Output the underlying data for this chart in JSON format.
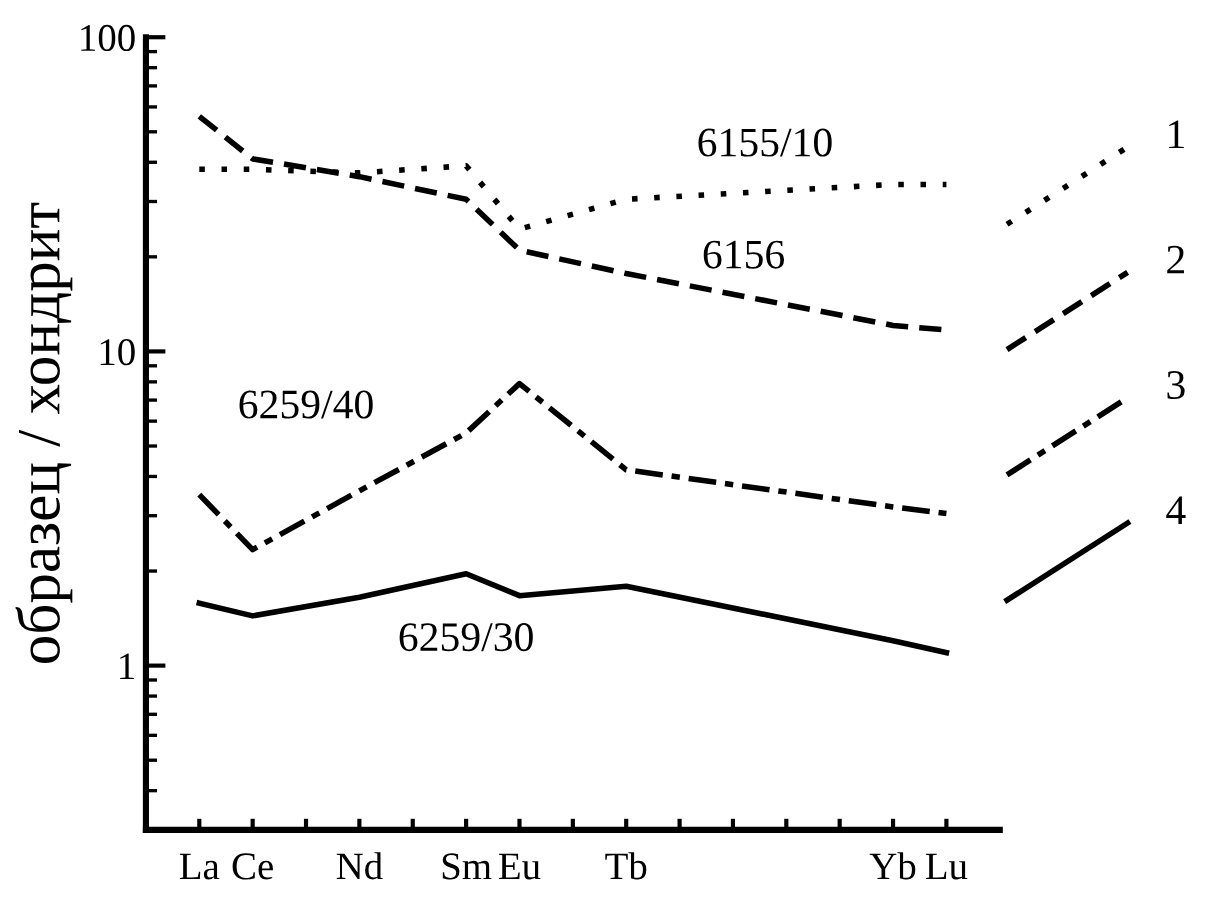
{
  "chart_data": {
    "type": "line",
    "ylabel": "образец / хондрит",
    "log": "y",
    "grid": false,
    "marker": "none",
    "legend": "right",
    "categories": [
      "La",
      "Ce",
      null,
      "Nd",
      null,
      "Sm",
      "Eu",
      null,
      "Tb",
      null,
      null,
      null,
      null,
      "Yb",
      "Lu"
    ],
    "ylim": [
      0.3,
      100
    ],
    "yticks": [
      1,
      10,
      100
    ],
    "series": [
      {
        "name": "6155/10",
        "color": "#000000",
        "line_style": "dotted",
        "values": [
          38,
          38,
          null,
          37,
          null,
          39,
          24.5,
          null,
          30.5,
          null,
          null,
          null,
          null,
          34,
          34
        ]
      },
      {
        "name": "6156",
        "color": "#000000",
        "line_style": "dashed",
        "values": [
          56,
          41,
          null,
          36,
          null,
          30.5,
          21,
          null,
          17.7,
          null,
          null,
          null,
          null,
          12.1,
          11.7
        ]
      },
      {
        "name": "6259/40",
        "color": "#000000",
        "line_style": "dashdot",
        "values": [
          3.5,
          2.34,
          null,
          3.6,
          null,
          5.5,
          7.9,
          null,
          4.2,
          null,
          null,
          null,
          null,
          3.2,
          3.05
        ]
      },
      {
        "name": "6259/30",
        "color": "#000000",
        "line_style": "solid",
        "values": [
          1.58,
          1.44,
          null,
          1.65,
          null,
          1.96,
          1.67,
          null,
          1.79,
          null,
          null,
          null,
          null,
          1.2,
          1.1
        ]
      }
    ],
    "annotations": [
      "1",
      "2",
      "3",
      "4"
    ]
  }
}
